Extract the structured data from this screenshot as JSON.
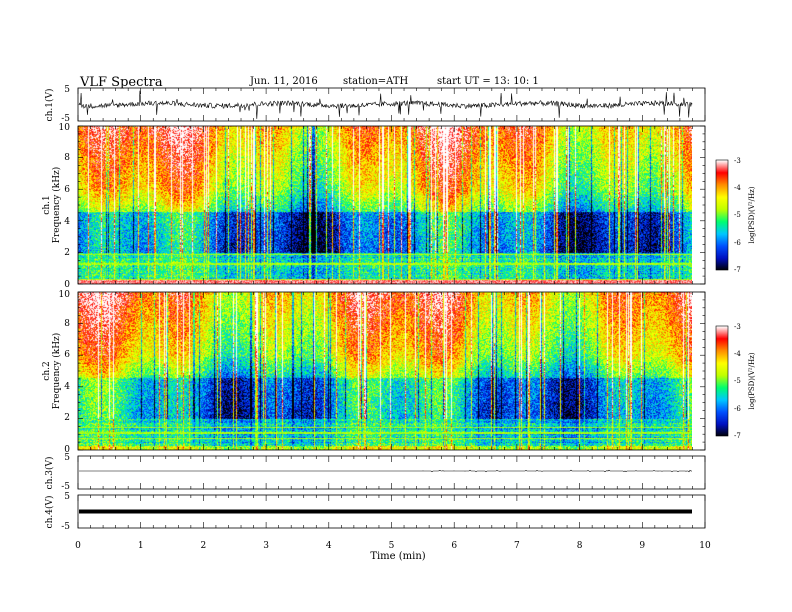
{
  "header": {
    "title": "VLF  Spectra",
    "date": "Jun. 11, 2016",
    "station": "station=ATH",
    "start": "start  UT  =    13: 10: 1"
  },
  "colors": {
    "colormap": [
      "#000000",
      "#0010c0",
      "#0050ff",
      "#00c8ff",
      "#00ff70",
      "#c0ff00",
      "#ffff00",
      "#ff9000",
      "#ff0000",
      "#ffffff"
    ],
    "text": "#000000"
  },
  "chart_data": [
    {
      "type": "line",
      "name": "ch1",
      "ylabel": "ch.1(V)",
      "ylim": [
        -5,
        5
      ],
      "yticks": [
        "5",
        "-5"
      ],
      "description_values": {
        "baseline": 0,
        "noise_amplitude": 1,
        "spike_amplitude": 2.5
      }
    },
    {
      "type": "heatmap",
      "name": "ch1",
      "ylabel_top": "ch.1",
      "ylabel": "Frequency  (kHz)",
      "ylim": [
        0,
        10
      ],
      "yticks": [
        "0",
        "2",
        "4",
        "6",
        "8",
        "10"
      ],
      "colorbar": {
        "label": "log(PSD)(V²/Hz)",
        "range": [
          -7,
          -3
        ],
        "ticks": [
          "-3",
          "-4",
          "-5",
          "-6",
          "-7"
        ]
      }
    },
    {
      "type": "heatmap",
      "name": "ch2",
      "ylabel_top": "ch.2",
      "ylabel": "Frequency  (kHz)",
      "ylim": [
        0,
        10
      ],
      "yticks": [
        "0",
        "2",
        "4",
        "6",
        "8",
        "10"
      ],
      "colorbar": {
        "label": "log(PSD)(V²/Hz)",
        "range": [
          -7,
          -3
        ],
        "ticks": [
          "-3",
          "-4",
          "-5",
          "-6",
          "-7"
        ]
      }
    },
    {
      "type": "line",
      "name": "ch3",
      "ylabel": "ch.3(V)",
      "ylim": [
        -5,
        5
      ],
      "yticks": [
        "5",
        "-5"
      ],
      "description_values": {
        "baseline": -1.5
      }
    },
    {
      "type": "line",
      "name": "ch4",
      "ylabel": "ch.4(V)",
      "ylim": [
        -5,
        5
      ],
      "yticks": [
        "5",
        "-5"
      ],
      "description_values": {
        "baseline": 0
      }
    }
  ],
  "xaxis": {
    "label": "Time  (min)",
    "xlim": [
      0,
      10
    ],
    "data_end": 9.8,
    "ticks": [
      "0",
      "1",
      "2",
      "3",
      "4",
      "5",
      "6",
      "7",
      "8",
      "9",
      "10"
    ]
  }
}
